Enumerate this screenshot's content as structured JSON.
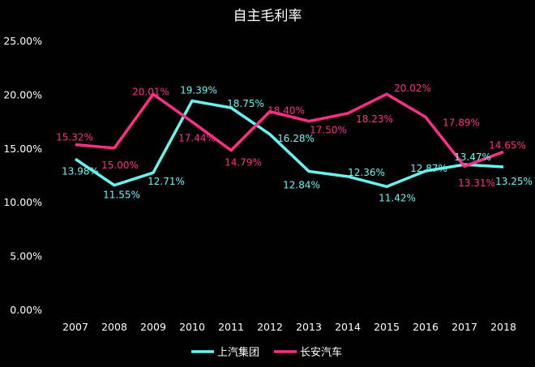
{
  "chart_data": {
    "type": "line",
    "title": "自主毛利率",
    "categories": [
      "2007",
      "2008",
      "2009",
      "2010",
      "2011",
      "2012",
      "2013",
      "2014",
      "2015",
      "2016",
      "2017",
      "2018"
    ],
    "ylim": [
      0,
      25
    ],
    "yticks": [
      "0.00%",
      "5.00%",
      "10.00%",
      "15.00%",
      "20.00%",
      "25.00%"
    ],
    "grid": false,
    "legend": "bottom",
    "series": [
      {
        "name": "上汽集团",
        "color": "#66f5f0",
        "values": [
          13.98,
          11.55,
          12.71,
          19.39,
          18.75,
          16.28,
          12.84,
          12.36,
          11.42,
          12.87,
          13.47,
          13.25
        ],
        "labels": [
          "13.98%",
          "11.55%",
          "12.71%",
          "19.39%",
          "18.75%",
          "16.28%",
          "12.84%",
          "12.36%",
          "11.42%",
          "12.87%",
          "13.47%",
          "13.25%"
        ]
      },
      {
        "name": "长安汽车",
        "color": "#ff2e86",
        "values": [
          15.32,
          15.0,
          20.01,
          17.44,
          14.79,
          18.4,
          17.5,
          18.23,
          20.02,
          17.89,
          13.31,
          14.65
        ],
        "labels": [
          "15.32%",
          "15.00%",
          "20.01%",
          "17.44%",
          "14.79%",
          "18.40%",
          "17.50%",
          "18.23%",
          "20.02%",
          "17.89%",
          "13.31%",
          "14.65%"
        ]
      }
    ]
  }
}
